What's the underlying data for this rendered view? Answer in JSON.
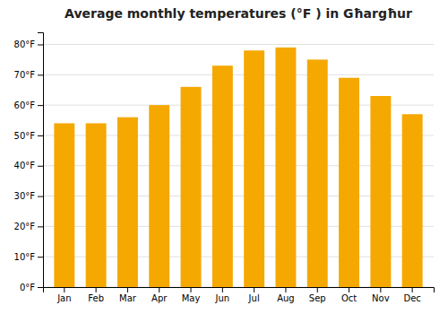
{
  "chart_data": {
    "type": "bar",
    "title": "Average monthly temperatures (°F ) in Għargħur",
    "categories": [
      "Jan",
      "Feb",
      "Mar",
      "Apr",
      "May",
      "Jun",
      "Jul",
      "Aug",
      "Sep",
      "Oct",
      "Nov",
      "Dec"
    ],
    "values": [
      54,
      54,
      56,
      60,
      66,
      73,
      78,
      79,
      75,
      69,
      63,
      57
    ],
    "color": "#F5A800",
    "ylim": [
      0,
      84
    ],
    "yticks": [
      {
        "value": 0,
        "label": "0°F"
      },
      {
        "value": 10,
        "label": "10°F"
      },
      {
        "value": 20,
        "label": "20°F"
      },
      {
        "value": 30,
        "label": "30°F"
      },
      {
        "value": 40,
        "label": "40°F"
      },
      {
        "value": 50,
        "label": "50°F"
      },
      {
        "value": 60,
        "label": "60°F"
      },
      {
        "value": 70,
        "label": "70°F"
      },
      {
        "value": 80,
        "label": "80°F"
      }
    ],
    "grid": true
  }
}
